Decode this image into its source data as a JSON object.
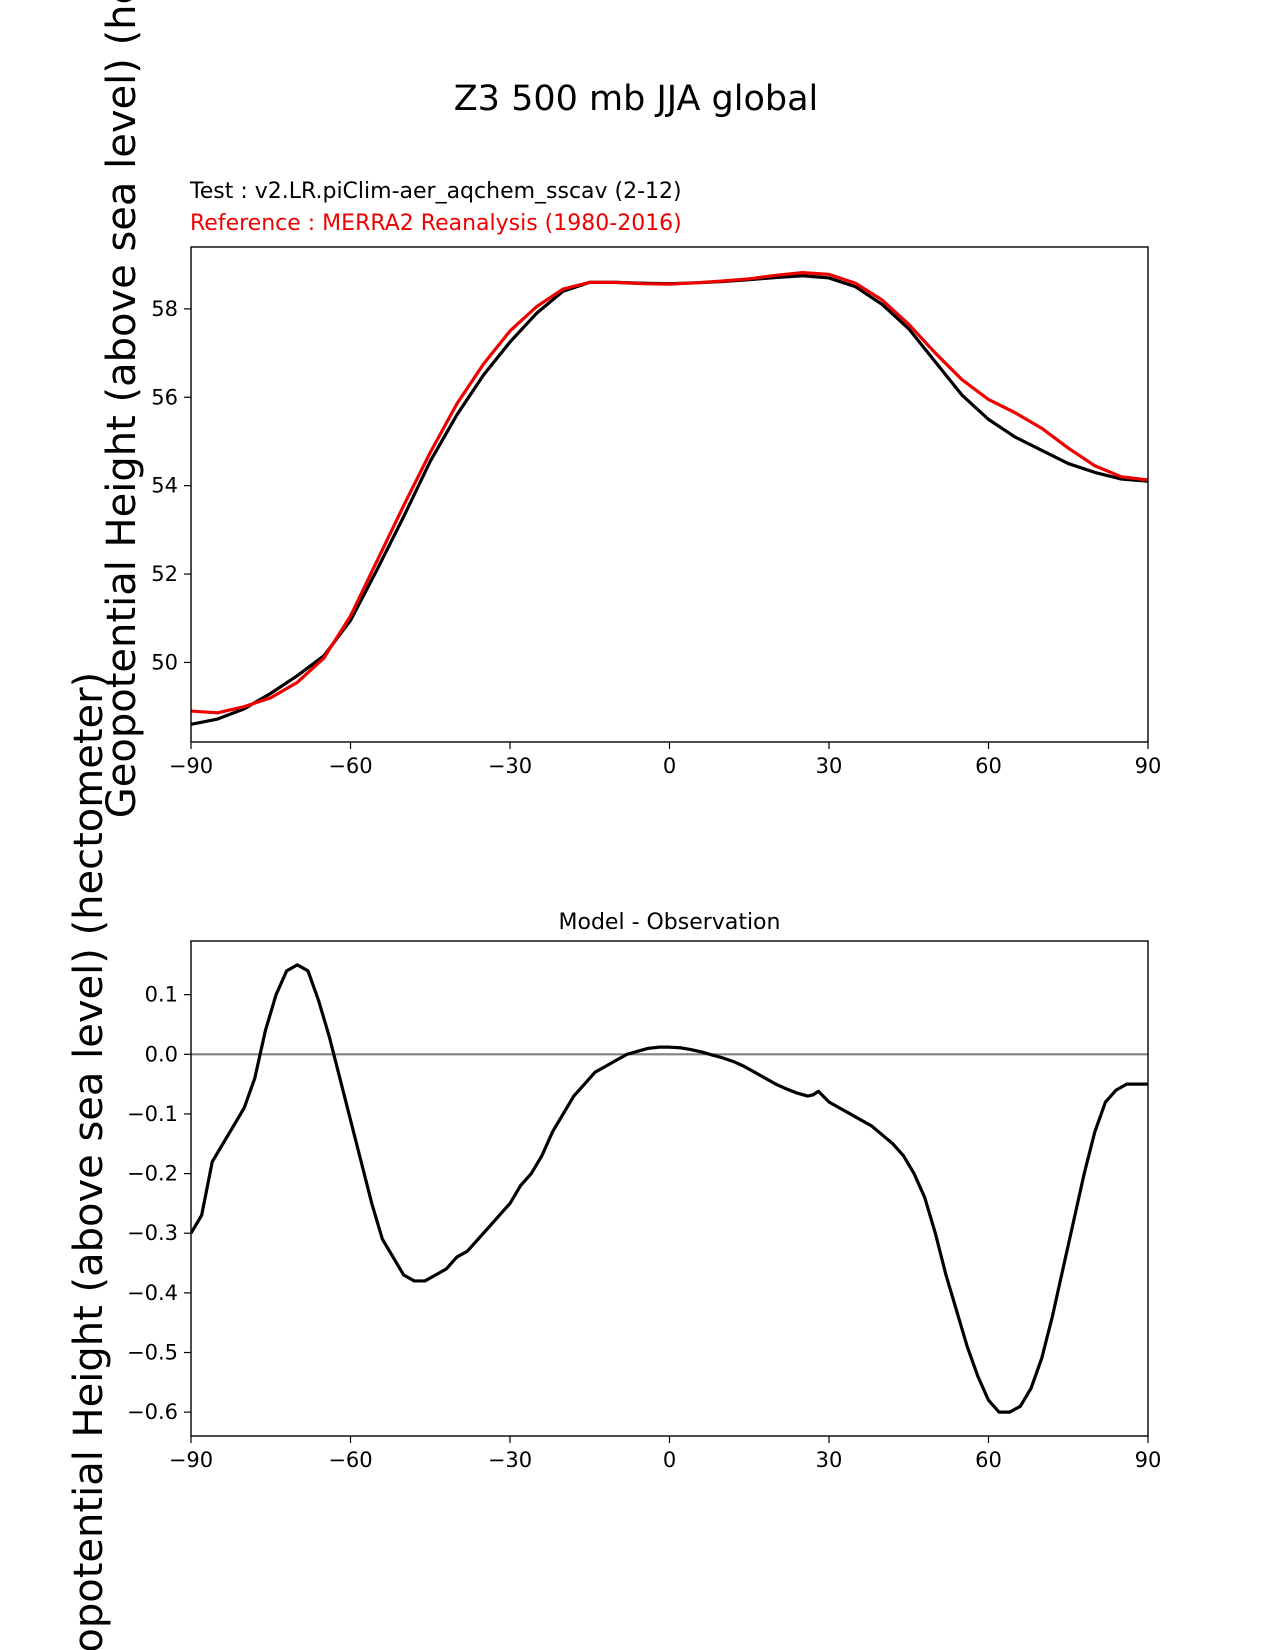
{
  "figure": {
    "title": "Z3 500 mb JJA global",
    "test_label": "Test : v2.LR.piClim-aer_aqchem_sscav (2-12)",
    "reference_label": "Reference : MERRA2 Reanalysis (1980-2016)",
    "colors": {
      "test": "#000000",
      "reference": "#ee0000",
      "zero_line": "#808080"
    }
  },
  "chart_data": [
    {
      "type": "line",
      "title": "",
      "xlabel": "",
      "ylabel": "Geopotential Height (above sea level) (hectometer)",
      "xlim": [
        -90,
        90
      ],
      "ylim": [
        48.2,
        59.4
      ],
      "xticks": [
        -90,
        -60,
        -30,
        0,
        30,
        60,
        90
      ],
      "xtick_labels": [
        "−90",
        "−60",
        "−30",
        "0",
        "30",
        "60",
        "90"
      ],
      "yticks": [
        50,
        52,
        54,
        56,
        58
      ],
      "ytick_labels": [
        "50",
        "52",
        "54",
        "56",
        "58"
      ],
      "series": [
        {
          "name": "Test",
          "color": "#000000",
          "x": [
            -90,
            -85,
            -80,
            -75,
            -70,
            -65,
            -60,
            -55,
            -50,
            -45,
            -40,
            -35,
            -30,
            -25,
            -20,
            -15,
            -10,
            -5,
            0,
            5,
            10,
            15,
            20,
            25,
            30,
            35,
            40,
            45,
            50,
            55,
            60,
            65,
            70,
            75,
            80,
            85,
            90
          ],
          "y": [
            48.6,
            48.72,
            48.95,
            49.3,
            49.7,
            50.15,
            50.95,
            52.1,
            53.3,
            54.55,
            55.6,
            56.5,
            57.25,
            57.9,
            58.4,
            58.6,
            58.6,
            58.58,
            58.57,
            58.59,
            58.62,
            58.66,
            58.71,
            58.75,
            58.7,
            58.5,
            58.1,
            57.55,
            56.8,
            56.05,
            55.5,
            55.1,
            54.8,
            54.5,
            54.3,
            54.15,
            54.1
          ]
        },
        {
          "name": "Reference",
          "color": "#ee0000",
          "x": [
            -90,
            -85,
            -80,
            -75,
            -70,
            -65,
            -60,
            -55,
            -50,
            -45,
            -40,
            -35,
            -30,
            -25,
            -20,
            -15,
            -10,
            -5,
            0,
            5,
            10,
            15,
            20,
            25,
            30,
            35,
            40,
            45,
            50,
            55,
            60,
            65,
            70,
            75,
            80,
            85,
            90
          ],
          "y": [
            48.9,
            48.86,
            49.0,
            49.2,
            49.55,
            50.1,
            51.05,
            52.3,
            53.55,
            54.75,
            55.85,
            56.75,
            57.5,
            58.05,
            58.45,
            58.6,
            58.6,
            58.57,
            58.56,
            58.59,
            58.63,
            58.68,
            58.76,
            58.82,
            58.78,
            58.58,
            58.2,
            57.65,
            57.0,
            56.4,
            55.95,
            55.65,
            55.3,
            54.85,
            54.45,
            54.2,
            54.13
          ]
        }
      ]
    },
    {
      "type": "line",
      "title": "Model - Observation",
      "xlabel": "",
      "ylabel": "Geopotential Height (above sea level) (hectometer)",
      "xlim": [
        -90,
        90
      ],
      "ylim": [
        -0.64,
        0.19
      ],
      "xticks": [
        -90,
        -60,
        -30,
        0,
        30,
        60,
        90
      ],
      "xtick_labels": [
        "−90",
        "−60",
        "−30",
        "0",
        "30",
        "60",
        "90"
      ],
      "yticks": [
        0.1,
        0.0,
        -0.1,
        -0.2,
        -0.3,
        -0.4,
        -0.5,
        -0.6
      ],
      "ytick_labels": [
        "0.1",
        "0.0",
        "−0.1",
        "−0.2",
        "−0.3",
        "−0.4",
        "−0.5",
        "−0.6"
      ],
      "zero_line": 0,
      "series": [
        {
          "name": "Model - Observation",
          "color": "#000000",
          "x": [
            -90,
            -88,
            -86,
            -84,
            -82,
            -80,
            -78,
            -76,
            -74,
            -72,
            -70,
            -68,
            -66,
            -64,
            -62,
            -60,
            -58,
            -56,
            -54,
            -52,
            -50,
            -48,
            -46,
            -44,
            -42,
            -40,
            -38,
            -36,
            -34,
            -32,
            -30,
            -28,
            -26,
            -24,
            -22,
            -20,
            -18,
            -16,
            -14,
            -12,
            -10,
            -8,
            -6,
            -4,
            -2,
            0,
            2,
            4,
            6,
            8,
            10,
            12,
            14,
            16,
            18,
            20,
            22,
            24,
            26,
            27,
            28,
            30,
            32,
            34,
            36,
            38,
            40,
            42,
            44,
            46,
            48,
            50,
            52,
            54,
            56,
            58,
            60,
            62,
            64,
            66,
            68,
            70,
            72,
            74,
            76,
            78,
            80,
            82,
            84,
            86,
            88,
            90
          ],
          "y": [
            -0.3,
            -0.27,
            -0.18,
            -0.15,
            -0.12,
            -0.09,
            -0.04,
            0.04,
            0.1,
            0.14,
            0.15,
            0.14,
            0.09,
            0.03,
            -0.04,
            -0.11,
            -0.18,
            -0.25,
            -0.31,
            -0.34,
            -0.37,
            -0.38,
            -0.38,
            -0.37,
            -0.36,
            -0.34,
            -0.33,
            -0.31,
            -0.29,
            -0.27,
            -0.25,
            -0.22,
            -0.2,
            -0.17,
            -0.13,
            -0.1,
            -0.07,
            -0.05,
            -0.03,
            -0.02,
            -0.01,
            0.0,
            0.005,
            0.01,
            0.012,
            0.012,
            0.011,
            0.008,
            0.004,
            -0.001,
            -0.006,
            -0.012,
            -0.02,
            -0.03,
            -0.04,
            -0.05,
            -0.058,
            -0.065,
            -0.07,
            -0.068,
            -0.062,
            -0.08,
            -0.09,
            -0.1,
            -0.11,
            -0.12,
            -0.135,
            -0.15,
            -0.17,
            -0.2,
            -0.24,
            -0.3,
            -0.37,
            -0.43,
            -0.49,
            -0.54,
            -0.58,
            -0.6,
            -0.6,
            -0.59,
            -0.56,
            -0.51,
            -0.44,
            -0.36,
            -0.28,
            -0.2,
            -0.13,
            -0.08,
            -0.06,
            -0.05,
            -0.05,
            -0.05
          ]
        }
      ]
    }
  ]
}
